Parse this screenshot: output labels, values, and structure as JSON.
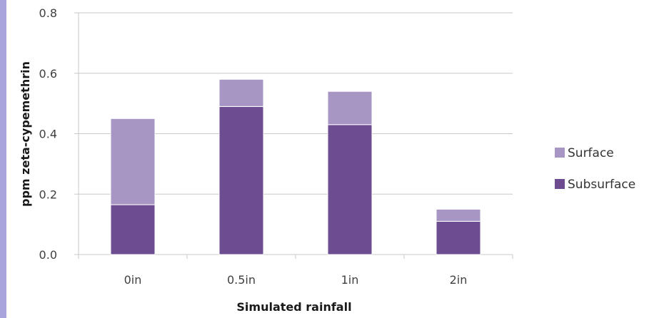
{
  "chart_data": {
    "type": "bar",
    "stacked": true,
    "categories": [
      "0in",
      "0.5in",
      "1in",
      "2in"
    ],
    "series": [
      {
        "name": "Subsurface",
        "values": [
          0.165,
          0.49,
          0.43,
          0.11
        ],
        "color": "#6d4c91"
      },
      {
        "name": "Surface",
        "values": [
          0.285,
          0.09,
          0.11,
          0.04
        ],
        "color": "#a796c4"
      }
    ],
    "xlabel": "Simulated rainfall",
    "ylabel": "ppm zeta-cypemethrin",
    "ylim": [
      0,
      0.8
    ],
    "yticks": [
      "0.0",
      "0.2",
      "0.4",
      "0.6",
      "0.8"
    ],
    "grid": true,
    "legend_position": "right",
    "legend": [
      "Surface",
      "Subsurface"
    ]
  },
  "colors": {
    "left_strip": "#a9a4dc",
    "gridline": "#c8c8c8",
    "bar_edge": "#ffffff"
  }
}
